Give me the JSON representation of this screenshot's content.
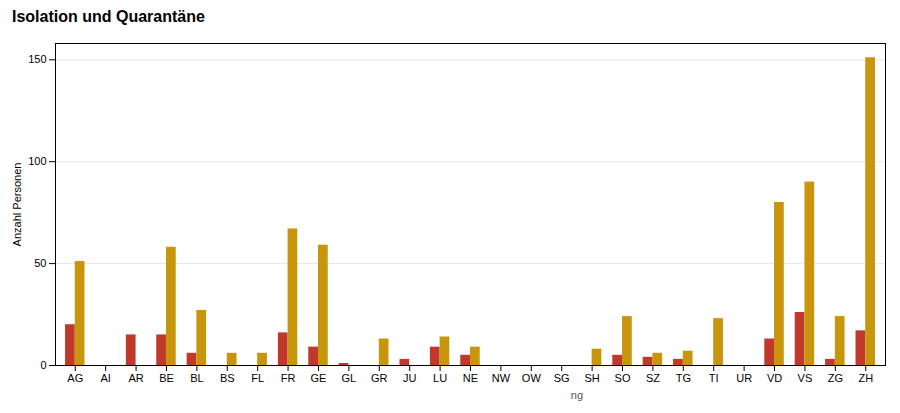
{
  "chart_data": {
    "type": "bar",
    "title": "Isolation und Quarantäne",
    "ylabel": "Anzahl Personen",
    "categories": [
      "AG",
      "AI",
      "AR",
      "BE",
      "BL",
      "BS",
      "FL",
      "FR",
      "GE",
      "GL",
      "GR",
      "JU",
      "LU",
      "NE",
      "NW",
      "OW",
      "SG",
      "SH",
      "SO",
      "SZ",
      "TG",
      "TI",
      "UR",
      "VD",
      "VS",
      "ZG",
      "ZH"
    ],
    "series": [
      {
        "color": "#c0392b",
        "values": [
          20,
          0,
          15,
          15,
          6,
          0,
          0,
          16,
          9,
          1,
          0,
          3,
          9,
          5,
          0,
          0,
          0,
          0,
          5,
          4,
          3,
          0,
          0,
          13,
          26,
          3,
          17
        ]
      },
      {
        "color": "#c8960c",
        "values": [
          51,
          0,
          0,
          58,
          27,
          6,
          6,
          67,
          59,
          0,
          13,
          0,
          14,
          9,
          0,
          0,
          0,
          8,
          24,
          6,
          7,
          23,
          0,
          80,
          90,
          24,
          151
        ]
      }
    ],
    "annotations": [
      {
        "text": "ng",
        "x": "SG"
      }
    ],
    "ylim": [
      0,
      158
    ],
    "yticks": [
      0,
      50,
      100,
      150
    ],
    "grid": true
  }
}
